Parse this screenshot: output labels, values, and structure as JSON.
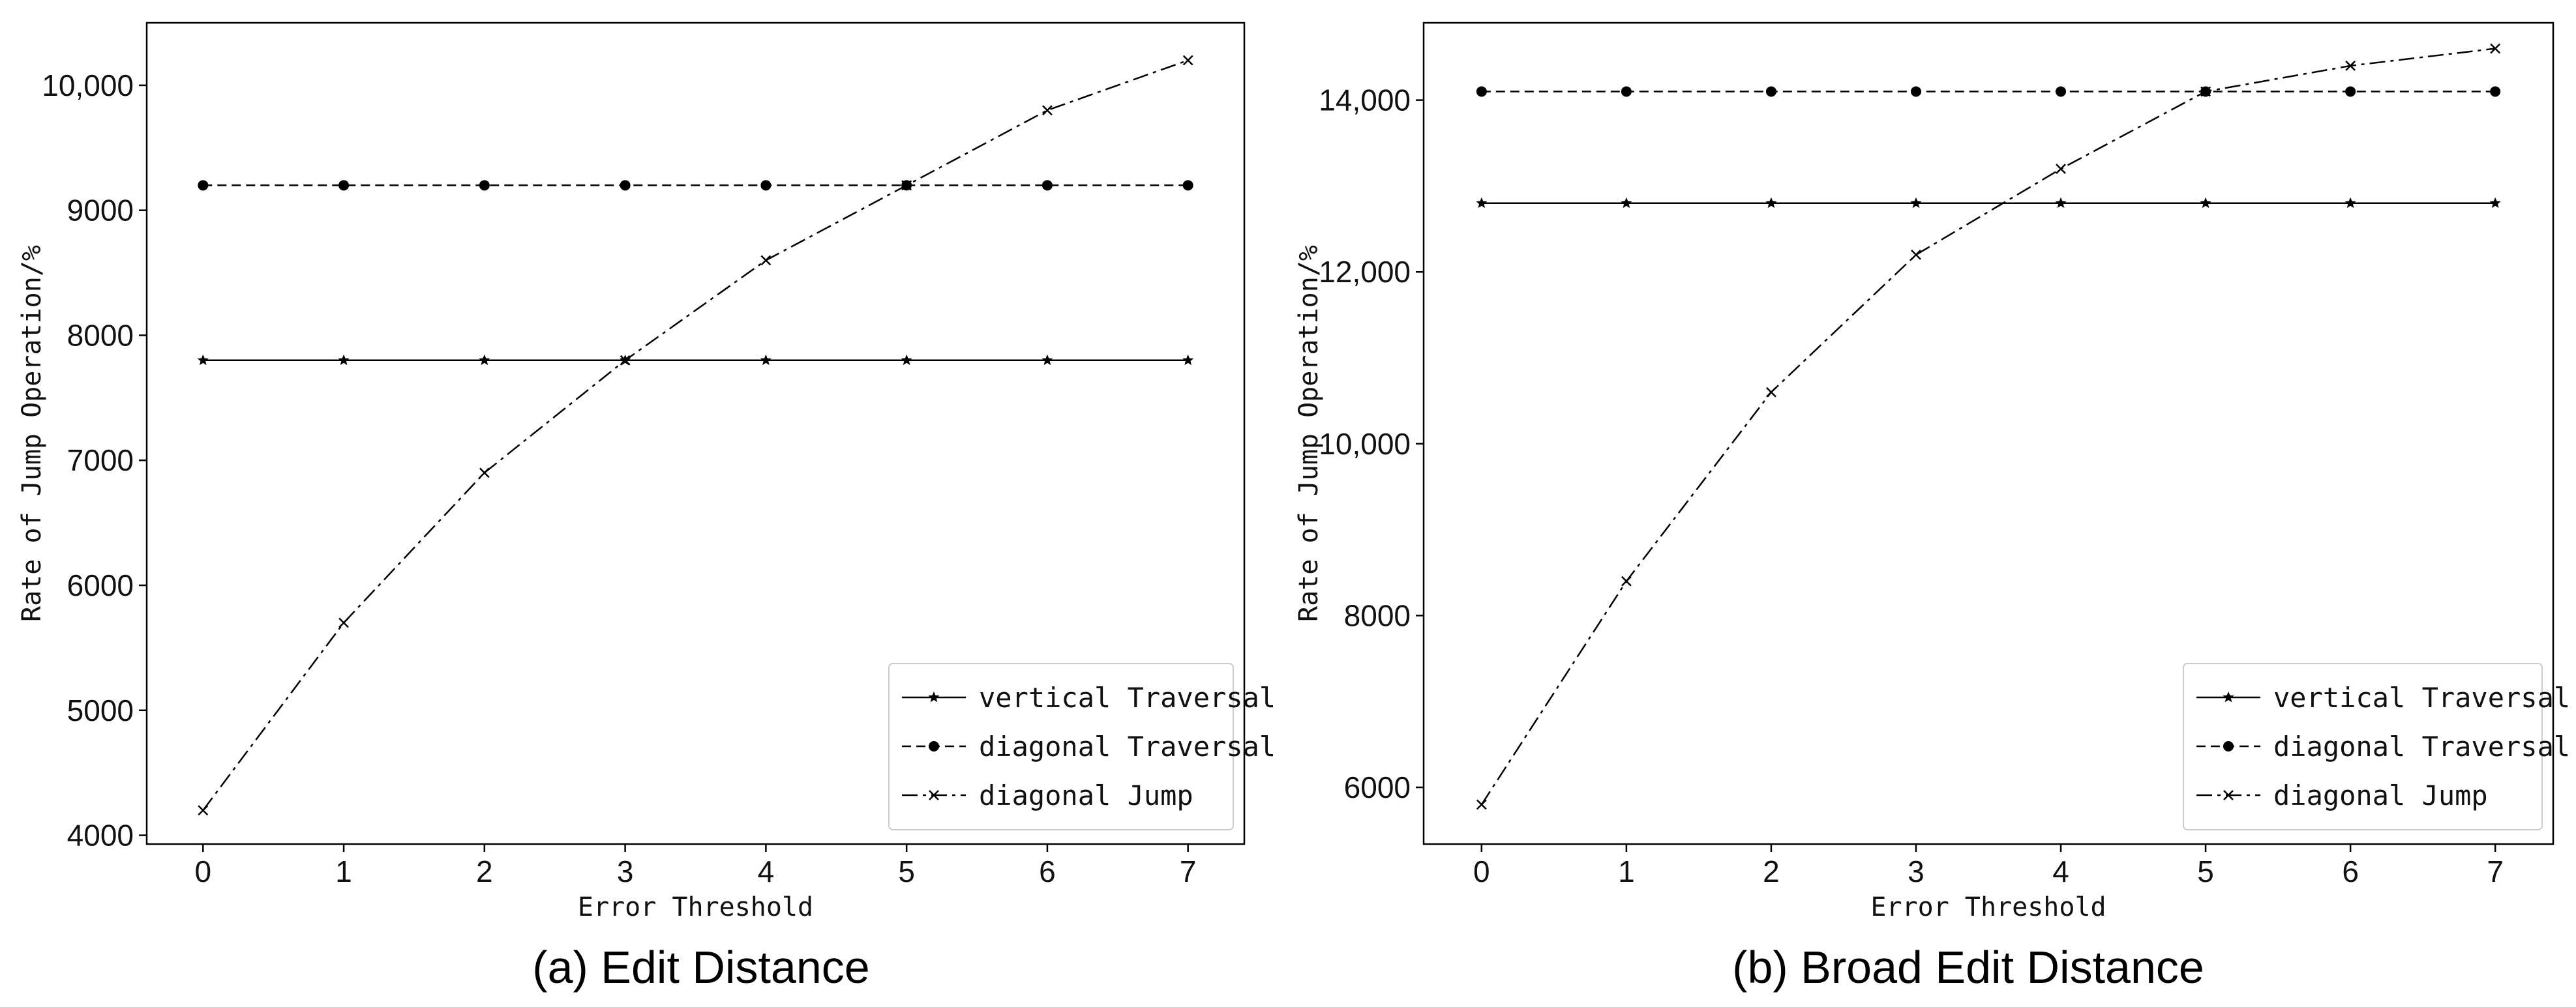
{
  "chart_data": [
    {
      "type": "line",
      "title": "",
      "caption": "(a) Edit Distance",
      "xlabel": "Error Threshold",
      "ylabel": "Rate of Jump Operation/%",
      "xlim": [
        -0.4,
        7.4
      ],
      "ylim": [
        3930,
        10500
      ],
      "x_ticks": [
        0,
        1,
        2,
        3,
        4,
        5,
        6,
        7
      ],
      "y_ticks": [
        {
          "value": 4000,
          "label": "4000"
        },
        {
          "value": 5000,
          "label": "5000"
        },
        {
          "value": 6000,
          "label": "6000"
        },
        {
          "value": 7000,
          "label": "7000"
        },
        {
          "value": 8000,
          "label": "8000"
        },
        {
          "value": 9000,
          "label": "9000"
        },
        {
          "value": 10000,
          "label": "10,000"
        }
      ],
      "legend_position": "lower-right",
      "x": [
        0,
        1,
        2,
        3,
        4,
        5,
        6,
        7
      ],
      "series": [
        {
          "name": "vertical Traversal",
          "style": "solid",
          "marker": "star",
          "values": [
            7800,
            7800,
            7800,
            7800,
            7800,
            7800,
            7800,
            7800
          ]
        },
        {
          "name": "diagonal Traversal",
          "style": "dashed",
          "marker": "dot",
          "values": [
            9200,
            9200,
            9200,
            9200,
            9200,
            9200,
            9200,
            9200
          ]
        },
        {
          "name": "diagonal Jump",
          "style": "dashdot",
          "marker": "x",
          "values": [
            4200,
            5700,
            6900,
            7800,
            8600,
            9200,
            9800,
            10200
          ]
        }
      ]
    },
    {
      "type": "line",
      "title": "",
      "caption": "(b) Broad Edit Distance",
      "xlabel": "Error Threshold",
      "ylabel": "Rate of Jump Operation/%",
      "xlim": [
        -0.4,
        7.4
      ],
      "ylim": [
        5340,
        14900
      ],
      "x_ticks": [
        0,
        1,
        2,
        3,
        4,
        5,
        6,
        7
      ],
      "y_ticks": [
        {
          "value": 6000,
          "label": "6000"
        },
        {
          "value": 8000,
          "label": "8000"
        },
        {
          "value": 10000,
          "label": "10,000"
        },
        {
          "value": 12000,
          "label": "12,000"
        },
        {
          "value": 14000,
          "label": "14,000"
        }
      ],
      "legend_position": "lower-right",
      "x": [
        0,
        1,
        2,
        3,
        4,
        5,
        6,
        7
      ],
      "series": [
        {
          "name": "vertical Traversal",
          "style": "solid",
          "marker": "star",
          "values": [
            12800,
            12800,
            12800,
            12800,
            12800,
            12800,
            12800,
            12800
          ]
        },
        {
          "name": "diagonal Traversal",
          "style": "dashed",
          "marker": "dot",
          "values": [
            14100,
            14100,
            14100,
            14100,
            14100,
            14100,
            14100,
            14100
          ]
        },
        {
          "name": "diagonal Jump",
          "style": "dashdot",
          "marker": "x",
          "values": [
            5800,
            8400,
            10600,
            12200,
            13200,
            14100,
            14400,
            14600
          ]
        }
      ]
    }
  ]
}
